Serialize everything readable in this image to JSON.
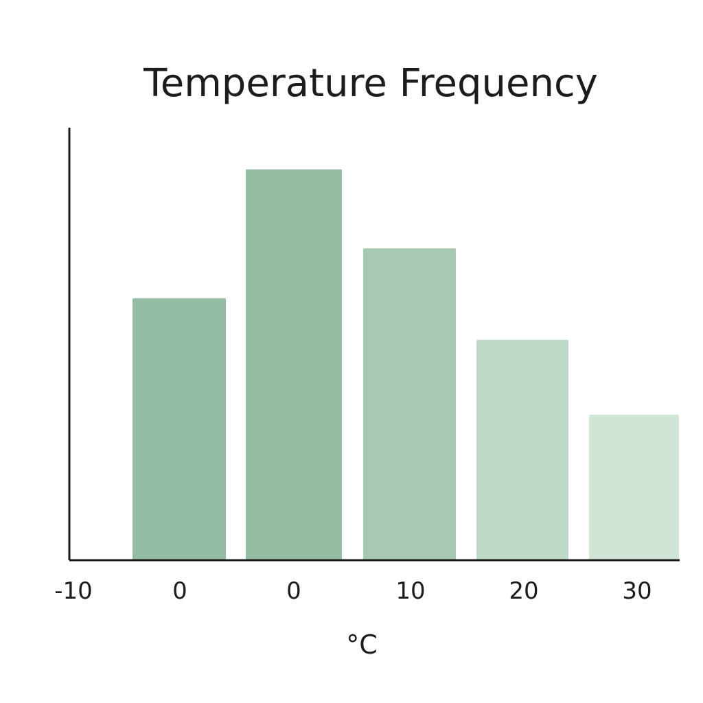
{
  "chart_data": {
    "type": "bar",
    "title": "Temperature Frequency",
    "xlabel": "°C",
    "ylabel": "",
    "tick_labels": [
      "-10",
      "0",
      "0",
      "10",
      "20",
      "30"
    ],
    "categories": [
      "0",
      "0",
      "10",
      "20",
      "30"
    ],
    "values": [
      6.3,
      9.4,
      7.5,
      5.3,
      3.5
    ],
    "ylim": [
      0,
      10.4
    ],
    "grid": false,
    "legend": "none",
    "bar_colors": [
      "#95bca5",
      "#96bca4",
      "#a7c8b2",
      "#bed9c5",
      "#d0e5d5"
    ],
    "axis_color": "#1a1a1a"
  }
}
